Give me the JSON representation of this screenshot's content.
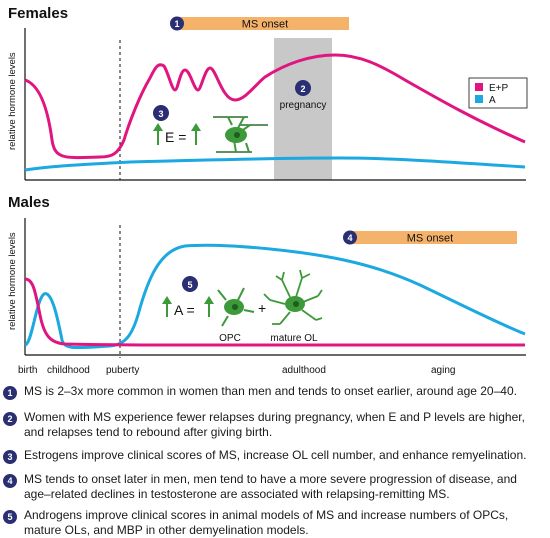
{
  "panels": {
    "females": {
      "title": "Females",
      "ylabel": "relative hormone levels",
      "ms_onset": {
        "num": "1",
        "label": "MS onset"
      },
      "pregnancy": {
        "num": "2",
        "label": "pregnancy"
      },
      "effect": {
        "num": "3",
        "text": "E ="
      }
    },
    "males": {
      "title": "Males",
      "ylabel": "relative hormone levels",
      "ms_onset": {
        "num": "4",
        "label": "MS onset"
      },
      "effect": {
        "num": "5",
        "text": "A =",
        "plus": "+",
        "opc": "OPC",
        "mature_ol": "mature OL"
      }
    }
  },
  "legend": [
    {
      "label": "E+P",
      "color": "#e0157f"
    },
    {
      "label": "A",
      "color": "#1ca8e0"
    }
  ],
  "xaxis": {
    "labels": [
      "birth",
      "childhood",
      "puberty",
      "adulthood",
      "aging"
    ]
  },
  "notes": [
    {
      "num": "1",
      "text": "MS is 2–3x more common in women than men and tends to onset earlier, around age 20–40."
    },
    {
      "num": "2",
      "text": "Women with MS experience fewer relapses during pregnancy, when E and P levels are higher, and relapses tend to rebound after giving birth."
    },
    {
      "num": "3",
      "text": "Estrogens improve clinical scores of MS, increase OL cell number, and enhance remyelination."
    },
    {
      "num": "4",
      "text": "MS tends to onset later in men, men tend to have a more severe progression of disease, and age–related declines in testosterone are associated with relapsing-remitting MS."
    },
    {
      "num": "5",
      "text": "Androgens improve clinical scores in animal models of MS and increase numbers of OPCs, mature OLs, and MBP in other demyelination models."
    }
  ],
  "colors": {
    "ep": "#e0157f",
    "a": "#1ca8e0",
    "onset_bar": "#f5b26a",
    "badge": "#2a2e73",
    "cell": "#3d9a3a"
  }
}
